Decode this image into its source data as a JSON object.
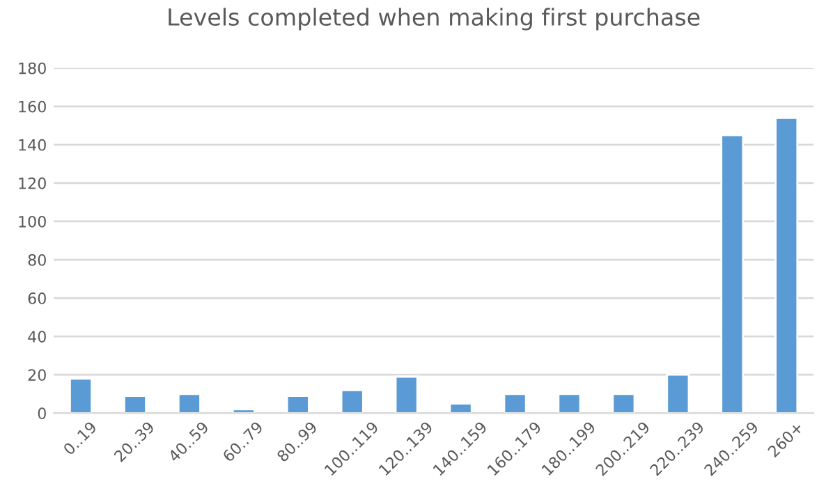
{
  "chart_data": {
    "type": "bar",
    "title": "Levels completed when making first purchase",
    "categories": [
      "0..19",
      "20..39",
      "40..59",
      "60..79",
      "80..99",
      "100..119",
      "120..139",
      "140..159",
      "160..179",
      "180..199",
      "200..219",
      "220..239",
      "240..259",
      "260+"
    ],
    "values": [
      18,
      9,
      10,
      2,
      9,
      12,
      19,
      5,
      10,
      10,
      10,
      20,
      145,
      154
    ],
    "color": "#5b9bd5",
    "ylim": [
      0,
      180
    ],
    "yticks": [
      0,
      20,
      40,
      60,
      80,
      100,
      120,
      140,
      160,
      180
    ],
    "grid": "y"
  }
}
